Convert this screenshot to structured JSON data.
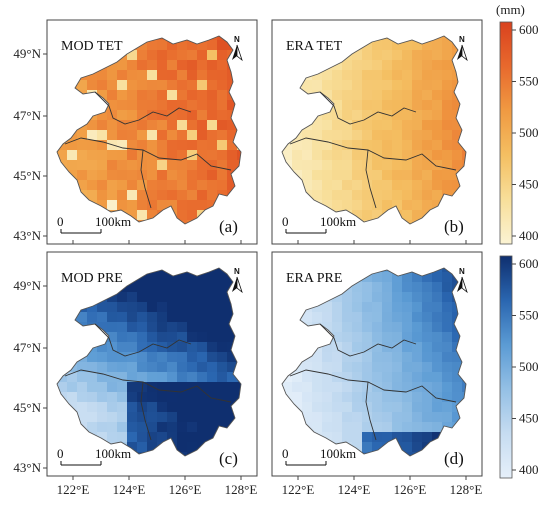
{
  "figure": {
    "lat_ticks": [
      "49°N",
      "47°N",
      "45°N",
      "43°N"
    ],
    "lon_ticks": [
      "122°E",
      "124°E",
      "126°E",
      "128°E"
    ],
    "scale_start": "0",
    "scale_end": "100km",
    "north_label": "N"
  },
  "panels": [
    {
      "id": "a",
      "title": "MOD TET",
      "letter": "(a)",
      "palette": "orange"
    },
    {
      "id": "b",
      "title": "ERA TET",
      "letter": "(b)",
      "palette": "orange"
    },
    {
      "id": "c",
      "title": "MOD PRE",
      "letter": "(c)",
      "palette": "blue"
    },
    {
      "id": "d",
      "title": "ERA PRE",
      "letter": "(d)",
      "palette": "blue"
    }
  ],
  "colorbars": [
    {
      "palette": "orange",
      "unit": "(mm)",
      "ticks": [
        "600",
        "550",
        "500",
        "450",
        "400"
      ],
      "colors": [
        "#fbf3d3",
        "#f8df9a",
        "#f4bf62",
        "#f09a42",
        "#e8692d",
        "#d9421e"
      ]
    },
    {
      "palette": "blue",
      "unit": "",
      "ticks": [
        "600",
        "550",
        "500",
        "450",
        "400"
      ],
      "colors": [
        "#e6f0fa",
        "#c6dcf1",
        "#94c0e5",
        "#5b9bd4",
        "#2a66b0",
        "#0f2f6f"
      ]
    }
  ],
  "chart_data": {
    "type": "heatmap",
    "xlabel": "",
    "ylabel": "",
    "x_range": [
      121.5,
      129.0
    ],
    "y_range": [
      42.6,
      50.0
    ],
    "color_range": [
      400,
      600
    ],
    "unit": "mm",
    "series": [
      {
        "name": "MOD TET",
        "values_range_observed": [
          500,
          600
        ]
      },
      {
        "name": "ERA TET",
        "values_range_observed": [
          400,
          570
        ]
      },
      {
        "name": "MOD PRE",
        "values_range_observed": [
          420,
          600
        ]
      },
      {
        "name": "ERA PRE",
        "values_range_observed": [
          400,
          600
        ]
      }
    ]
  }
}
